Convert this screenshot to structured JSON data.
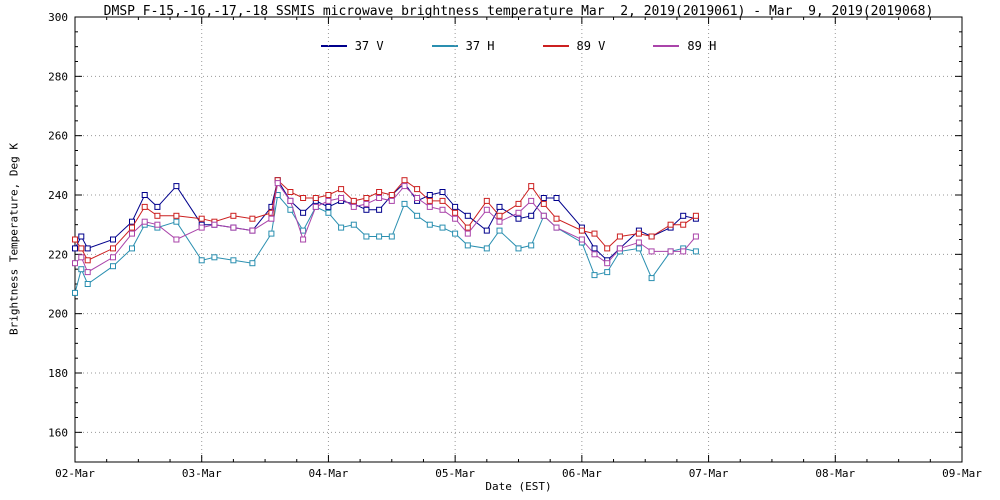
{
  "title": "DMSP F-15,-16,-17,-18 SSMIS microwave brightness temperature Mar  2, 2019(2019061) - Mar  9, 2019(2019068)",
  "chart_data": {
    "type": "line",
    "title": "DMSP F-15,-16,-17,-18 SSMIS microwave brightness temperature Mar  2, 2019(2019061) - Mar  9, 2019(2019068)",
    "xlabel": "Date (EST)",
    "ylabel": "Brightness Temperature, Deg K",
    "xlim": [
      2,
      9
    ],
    "ylim": [
      150,
      300
    ],
    "yticks": [
      160,
      180,
      200,
      220,
      240,
      260,
      280,
      300
    ],
    "xticks": [
      {
        "value": 2,
        "label": "02-Mar"
      },
      {
        "value": 3,
        "label": "03-Mar"
      },
      {
        "value": 4,
        "label": "04-Mar"
      },
      {
        "value": 5,
        "label": "05-Mar"
      },
      {
        "value": 6,
        "label": "06-Mar"
      },
      {
        "value": 7,
        "label": "07-Mar"
      },
      {
        "value": 8,
        "label": "08-Mar"
      },
      {
        "value": 9,
        "label": "09-Mar"
      }
    ],
    "grid": "dotted",
    "legend_position": "top",
    "marker": "open-square",
    "x": [
      2.0,
      2.05,
      2.1,
      2.3,
      2.45,
      2.55,
      2.65,
      2.8,
      3.0,
      3.1,
      3.25,
      3.4,
      3.55,
      3.6,
      3.7,
      3.8,
      3.9,
      4.0,
      4.1,
      4.2,
      4.3,
      4.4,
      4.5,
      4.6,
      4.7,
      4.8,
      4.9,
      5.0,
      5.1,
      5.25,
      5.35,
      5.5,
      5.6,
      5.7,
      5.8,
      6.0,
      6.1,
      6.2,
      6.3,
      6.45,
      6.55,
      6.7,
      6.8,
      6.9
    ],
    "series": [
      {
        "name": "37 V",
        "color": "#00008C",
        "values": [
          222,
          226,
          222,
          225,
          231,
          240,
          236,
          243,
          230,
          230,
          229,
          228,
          236,
          245,
          238,
          234,
          238,
          236,
          238,
          237,
          235,
          235,
          240,
          244,
          238,
          240,
          241,
          236,
          233,
          228,
          236,
          232,
          233,
          239,
          239,
          229,
          222,
          218,
          222,
          228,
          226,
          229,
          233,
          232
        ]
      },
      {
        "name": "37 H",
        "color": "#2A8FB0",
        "values": [
          207,
          215,
          210,
          216,
          222,
          230,
          229,
          231,
          218,
          219,
          218,
          217,
          227,
          240,
          235,
          228,
          236,
          234,
          229,
          230,
          226,
          226,
          226,
          237,
          233,
          230,
          229,
          227,
          223,
          222,
          228,
          222,
          223,
          233,
          229,
          224,
          213,
          214,
          221,
          222,
          212,
          221,
          222,
          221
        ]
      },
      {
        "name": "89 V",
        "color": "#CC2020",
        "values": [
          225,
          222,
          218,
          222,
          229,
          236,
          233,
          233,
          232,
          231,
          233,
          232,
          234,
          245,
          241,
          239,
          239,
          240,
          242,
          238,
          239,
          241,
          240,
          245,
          242,
          238,
          238,
          234,
          229,
          238,
          233,
          237,
          243,
          237,
          232,
          228,
          227,
          222,
          226,
          227,
          226,
          230,
          230,
          233
        ]
      },
      {
        "name": "89 H",
        "color": "#AA44AA",
        "values": [
          217,
          219,
          214,
          219,
          227,
          231,
          230,
          225,
          229,
          230,
          229,
          228,
          232,
          244,
          238,
          225,
          236,
          238,
          239,
          236,
          237,
          239,
          238,
          243,
          239,
          236,
          235,
          232,
          227,
          235,
          231,
          234,
          238,
          233,
          229,
          225,
          220,
          217,
          222,
          224,
          221,
          221,
          221,
          226
        ]
      }
    ]
  }
}
